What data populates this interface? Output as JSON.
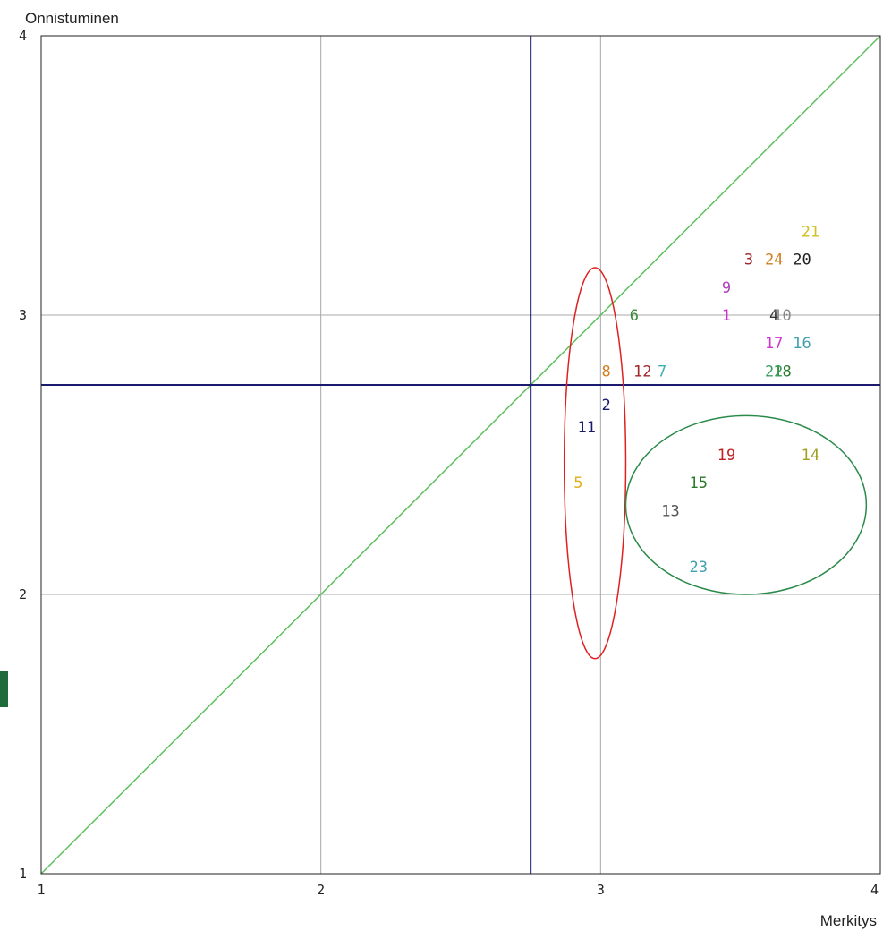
{
  "chart_data": {
    "type": "scatter",
    "title": "",
    "xlabel": "Merkitys",
    "ylabel": "Onnistuminen",
    "xlim": [
      1,
      4
    ],
    "ylim": [
      1,
      4
    ],
    "x_ticks": [
      "1",
      "2",
      "3",
      "4"
    ],
    "y_ticks": [
      "1",
      "2",
      "3",
      "4"
    ],
    "grid": true,
    "reference_lines": {
      "diagonal": "y = x",
      "vertical_x": 2.75,
      "horizontal_y": 2.75
    },
    "points": [
      {
        "label": "1",
        "x": 3.45,
        "y": 3.0,
        "color": "#cc33cc"
      },
      {
        "label": "2",
        "x": 3.02,
        "y": 2.68,
        "color": "#1a1a6e"
      },
      {
        "label": "3",
        "x": 3.53,
        "y": 3.2,
        "color": "#a0262a"
      },
      {
        "label": "4",
        "x": 3.62,
        "y": 3.0,
        "color": "#333333"
      },
      {
        "label": "5",
        "x": 2.92,
        "y": 2.4,
        "color": "#e0b020"
      },
      {
        "label": "6",
        "x": 3.12,
        "y": 3.0,
        "color": "#3a8a3a"
      },
      {
        "label": "7",
        "x": 3.22,
        "y": 2.8,
        "color": "#40b0b0"
      },
      {
        "label": "8",
        "x": 3.02,
        "y": 2.8,
        "color": "#d08020"
      },
      {
        "label": "9",
        "x": 3.45,
        "y": 3.1,
        "color": "#b040c0"
      },
      {
        "label": "10",
        "x": 3.65,
        "y": 3.0,
        "color": "#888888"
      },
      {
        "label": "11",
        "x": 2.95,
        "y": 2.6,
        "color": "#1a1a6e"
      },
      {
        "label": "12",
        "x": 3.15,
        "y": 2.8,
        "color": "#a0262a"
      },
      {
        "label": "13",
        "x": 3.25,
        "y": 2.3,
        "color": "#555555"
      },
      {
        "label": "14",
        "x": 3.75,
        "y": 2.5,
        "color": "#a0a020"
      },
      {
        "label": "15",
        "x": 3.35,
        "y": 2.4,
        "color": "#2a7a2a"
      },
      {
        "label": "16",
        "x": 3.72,
        "y": 2.9,
        "color": "#40a0b0"
      },
      {
        "label": "17",
        "x": 3.62,
        "y": 2.9,
        "color": "#cc33cc"
      },
      {
        "label": "18",
        "x": 3.65,
        "y": 2.8,
        "color": "#2a7a2a"
      },
      {
        "label": "19",
        "x": 3.45,
        "y": 2.5,
        "color": "#c02020"
      },
      {
        "label": "20",
        "x": 3.72,
        "y": 3.2,
        "color": "#222222"
      },
      {
        "label": "21",
        "x": 3.75,
        "y": 3.3,
        "color": "#d0c020"
      },
      {
        "label": "22",
        "x": 3.62,
        "y": 2.8,
        "color": "#3aa060"
      },
      {
        "label": "23",
        "x": 3.35,
        "y": 2.1,
        "color": "#40a0b0"
      },
      {
        "label": "24",
        "x": 3.62,
        "y": 3.2,
        "color": "#d08020"
      }
    ],
    "annotations": [
      {
        "shape": "ellipse",
        "color": "#e02020",
        "center": [
          2.98,
          2.47
        ],
        "radius_x": 0.11,
        "radius_y": 0.7
      },
      {
        "shape": "ellipse",
        "color": "#2a8a4a",
        "center": [
          3.52,
          2.32
        ],
        "radius_x": 0.43,
        "radius_y": 0.32
      }
    ],
    "colors": {
      "diagonal": "#5cc05c",
      "reference": "#1a1a6e",
      "grid": "#a8a8a8",
      "frame": "#222222"
    }
  }
}
